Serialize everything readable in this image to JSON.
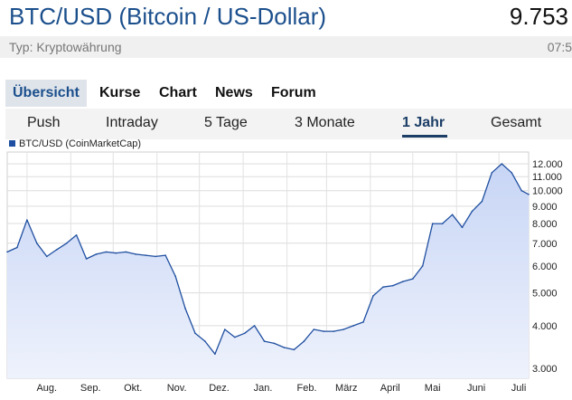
{
  "header": {
    "title": "BTC/USD (Bitcoin / US-Dollar)",
    "price": "9.753",
    "type_label": "Typ: Kryptowährung",
    "time": "07:5"
  },
  "tabs": [
    "Übersicht",
    "Kurse",
    "Chart",
    "News",
    "Forum"
  ],
  "active_tab": "Übersicht",
  "subtabs": [
    "Push",
    "Intraday",
    "5 Tage",
    "3 Monate",
    "1 Jahr",
    "Gesamt"
  ],
  "active_subtab": "1 Jahr",
  "colors": {
    "line": "#1f4fa0",
    "fill_top": "#c7d5f5",
    "fill_bottom": "#eef2fc",
    "accent": "#1b4f8c"
  },
  "chart_data": {
    "type": "area",
    "legend": "BTC/USD (CoinMarketCap)",
    "y_scale": "log",
    "ylim": [
      2800,
      13000
    ],
    "y_ticks": [
      3000,
      4000,
      5000,
      6000,
      7000,
      8000,
      9000,
      10000,
      11000,
      12000
    ],
    "y_tick_labels": [
      "3.000",
      "4.000",
      "5.000",
      "6.000",
      "7.000",
      "8.000",
      "9.000",
      "10.000",
      "11.000",
      "12.000"
    ],
    "x_tick_labels": [
      "Aug.",
      "Sep.",
      "Okt.",
      "Nov.",
      "Dez.",
      "Jan.",
      "Feb.",
      "März",
      "April",
      "Mai",
      "Juni",
      "Juli"
    ],
    "grid": true,
    "x": [
      "2018-07-18",
      "2018-07-25",
      "2018-08-01",
      "2018-08-08",
      "2018-08-15",
      "2018-08-22",
      "2018-08-29",
      "2018-09-05",
      "2018-09-12",
      "2018-09-19",
      "2018-09-26",
      "2018-10-03",
      "2018-10-10",
      "2018-10-17",
      "2018-10-24",
      "2018-10-31",
      "2018-11-07",
      "2018-11-14",
      "2018-11-21",
      "2018-11-28",
      "2018-12-05",
      "2018-12-12",
      "2018-12-19",
      "2018-12-26",
      "2019-01-02",
      "2019-01-09",
      "2019-01-16",
      "2019-01-23",
      "2019-01-30",
      "2019-02-06",
      "2019-02-13",
      "2019-02-20",
      "2019-02-27",
      "2019-03-06",
      "2019-03-13",
      "2019-03-20",
      "2019-03-27",
      "2019-04-03",
      "2019-04-10",
      "2019-04-17",
      "2019-04-24",
      "2019-05-01",
      "2019-05-08",
      "2019-05-15",
      "2019-05-22",
      "2019-05-29",
      "2019-06-05",
      "2019-06-12",
      "2019-06-19",
      "2019-06-26",
      "2019-07-03",
      "2019-07-10",
      "2019-07-17",
      "2019-07-22"
    ],
    "values": [
      6600,
      6800,
      8200,
      7000,
      6400,
      6700,
      7000,
      7400,
      6300,
      6500,
      6600,
      6550,
      6600,
      6500,
      6450,
      6400,
      6450,
      5600,
      4500,
      3800,
      3600,
      3300,
      3900,
      3700,
      3800,
      4000,
      3600,
      3550,
      3450,
      3400,
      3600,
      3900,
      3850,
      3850,
      3900,
      4000,
      4100,
      4900,
      5200,
      5250,
      5400,
      5500,
      6000,
      8000,
      8000,
      8500,
      7800,
      8700,
      9300,
      11300,
      12000,
      11300,
      10000,
      9753
    ]
  }
}
